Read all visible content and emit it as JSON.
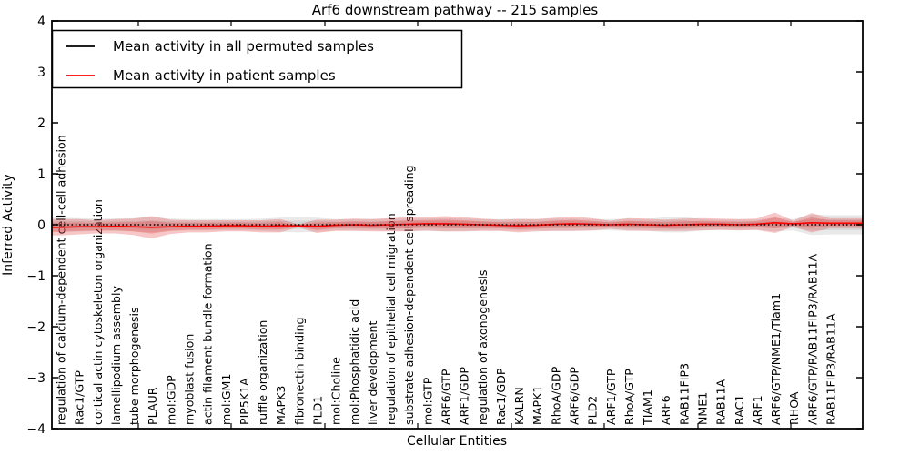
{
  "chart_data": {
    "type": "line",
    "title": "Arf6 downstream pathway -- 215 samples",
    "xlabel": "Cellular Entities",
    "ylabel": "Inferred Activity",
    "ylim": [
      -4,
      4
    ],
    "yticks": [
      4,
      3,
      2,
      1,
      0,
      -1,
      -2,
      -3,
      -4
    ],
    "grid": false,
    "legend_position": "upper left",
    "categories": [
      "regulation of calcium-dependent cell-cell adhesion",
      "Rac1/GTP",
      "cortical actin cytoskeleton organization",
      "lamellipodium assembly",
      "tube morphogenesis",
      "PLAUR",
      "mol:GDP",
      "myoblast fusion",
      "actin filament bundle formation",
      "mol:GM1",
      "PIP5K1A",
      "ruffle organization",
      "MAPK3",
      "fibronectin binding",
      "PLD1",
      "mol:Choline",
      "mol:Phosphatidic acid",
      "liver development",
      "regulation of epithelial cell migration",
      "substrate adhesion-dependent cell spreading",
      "mol:GTP",
      "ARF6/GTP",
      "ARF1/GDP",
      "regulation of axonogenesis",
      "Rac1/GDP",
      "KALRN",
      "MAPK1",
      "RhoA/GDP",
      "ARF6/GDP",
      "PLD2",
      "ARF1/GTP",
      "RhoA/GTP",
      "TIAM1",
      "ARF6",
      "RAB11FIP3",
      "NME1",
      "RAB11A",
      "RAC1",
      "ARF1",
      "ARF6/GTP/NME1/Tiam1",
      "RHOA",
      "ARF6/GTP/RAB11FIP3/RAB11A",
      "RAB11FIP3/RAB11A"
    ],
    "series": [
      {
        "name": "Mean activity in all permuted samples",
        "color": "#000000",
        "style": "dotted",
        "band_color": "#787878",
        "values": [
          0,
          0,
          0,
          0,
          0,
          0,
          0,
          0,
          0,
          0,
          0,
          0,
          0,
          0,
          0,
          0,
          0,
          0,
          0,
          0,
          0,
          0,
          0,
          0,
          0,
          0,
          0,
          0,
          0,
          0,
          0,
          0,
          0,
          0,
          0,
          0,
          0,
          0,
          0,
          0,
          0,
          0,
          0
        ],
        "band_halfwidth": [
          0.14,
          0.13,
          0.12,
          0.12,
          0.13,
          0.15,
          0.12,
          0.11,
          0.11,
          0.11,
          0.11,
          0.12,
          0.14,
          0.15,
          0.14,
          0.11,
          0.11,
          0.11,
          0.12,
          0.12,
          0.12,
          0.13,
          0.12,
          0.11,
          0.11,
          0.12,
          0.11,
          0.12,
          0.12,
          0.11,
          0.11,
          0.12,
          0.11,
          0.15,
          0.15,
          0.11,
          0.1,
          0.1,
          0.1,
          0.13,
          0.11,
          0.2,
          0.19
        ]
      },
      {
        "name": "Mean activity in patient samples",
        "color": "#ff0000",
        "style": "solid",
        "band_color": "#e03030",
        "values": [
          -0.05,
          -0.04,
          -0.04,
          -0.03,
          -0.04,
          -0.05,
          -0.04,
          -0.03,
          -0.03,
          -0.02,
          -0.02,
          -0.03,
          -0.02,
          -0.02,
          -0.03,
          -0.01,
          0.0,
          -0.01,
          0.0,
          0.01,
          0.02,
          0.02,
          0.01,
          0.0,
          -0.01,
          -0.02,
          -0.01,
          0.01,
          0.02,
          0.01,
          0.0,
          0.01,
          0.0,
          -0.01,
          0.0,
          0.01,
          0.01,
          0.0,
          0.01,
          0.04,
          0.02,
          0.04,
          0.03
        ],
        "band_halfwidth": [
          0.16,
          0.15,
          0.13,
          0.14,
          0.16,
          0.22,
          0.14,
          0.12,
          0.12,
          0.11,
          0.11,
          0.12,
          0.13,
          0.03,
          0.13,
          0.11,
          0.12,
          0.12,
          0.13,
          0.14,
          0.13,
          0.15,
          0.14,
          0.12,
          0.11,
          0.13,
          0.12,
          0.13,
          0.14,
          0.12,
          0.08,
          0.12,
          0.12,
          0.11,
          0.12,
          0.12,
          0.11,
          0.11,
          0.11,
          0.2,
          0.06,
          0.19,
          0.1
        ]
      }
    ]
  }
}
